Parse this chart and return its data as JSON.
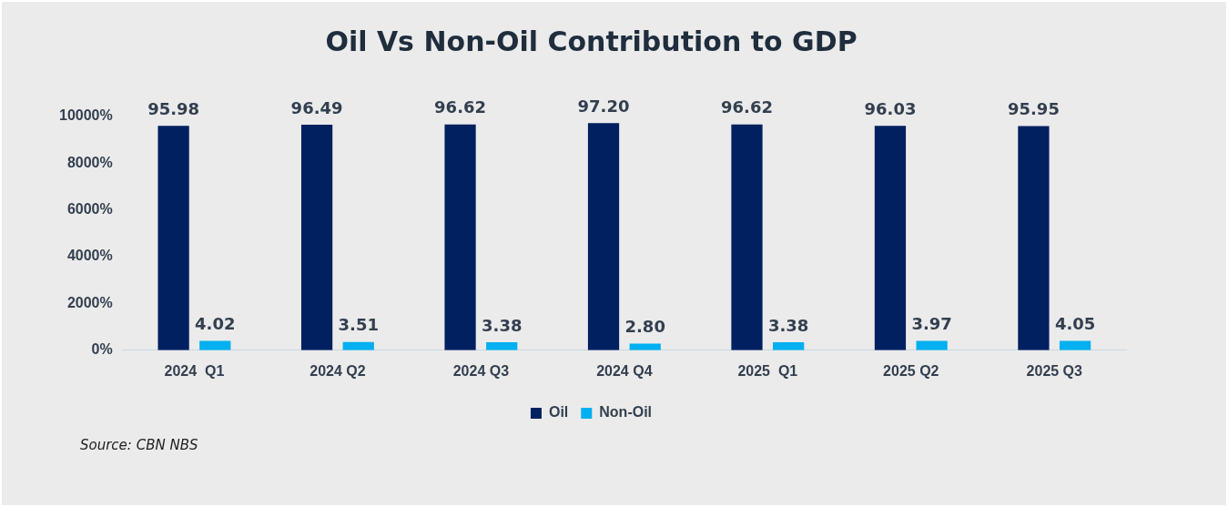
{
  "chart_data": {
    "type": "bar",
    "title": "Oil Vs Non-Oil Contribution to GDP",
    "categories": [
      "2024  Q1",
      "2024 Q2",
      "2024 Q3",
      "2024 Q4",
      "2025  Q1",
      "2025 Q2",
      "2025 Q3"
    ],
    "series": [
      {
        "name": "Oil",
        "color": "#002060",
        "values": [
          95.98,
          96.49,
          96.62,
          97.2,
          96.62,
          96.03,
          95.95
        ],
        "value_labels": [
          "95.98",
          "96.49",
          "96.62",
          "97.20",
          "96.62",
          "96.03",
          "95.95"
        ]
      },
      {
        "name": "Non-Oil",
        "color": "#00b0f0",
        "values": [
          4.02,
          3.51,
          3.38,
          2.8,
          3.38,
          3.97,
          4.05
        ],
        "value_labels": [
          "4.02",
          "3.51",
          "3.38",
          "2.80",
          "3.38",
          "3.97",
          "4.05"
        ]
      }
    ],
    "ylim": [
      0,
      100
    ],
    "yticks": [
      {
        "value": 0,
        "label": "0%"
      },
      {
        "value": 20,
        "label": "2000%"
      },
      {
        "value": 40,
        "label": "4000%"
      },
      {
        "value": 60,
        "label": "6000%"
      },
      {
        "value": 80,
        "label": "8000%"
      },
      {
        "value": 100,
        "label": "10000%"
      }
    ],
    "grid": false,
    "legend": "bottom",
    "annotations": [
      "Source: CBN NBS"
    ]
  }
}
